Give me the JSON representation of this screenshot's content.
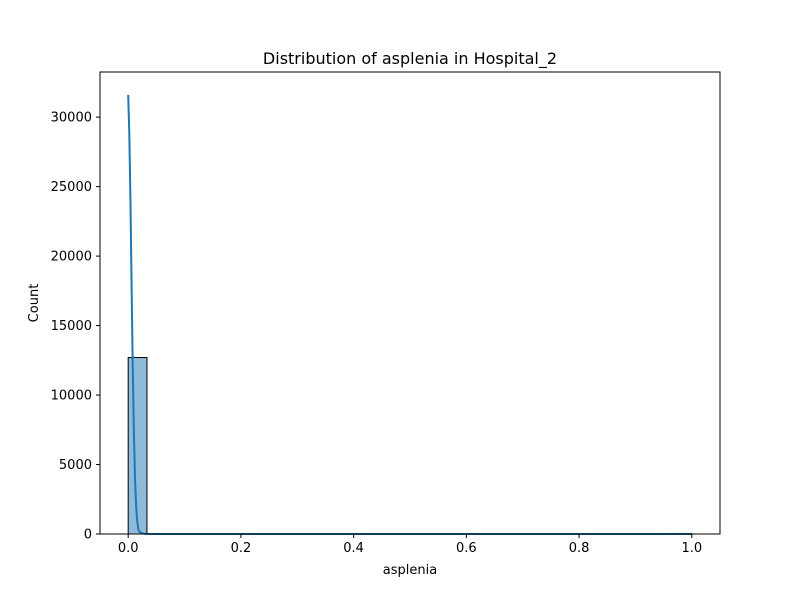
{
  "chart_data": {
    "type": "bar",
    "title": "Distribution of asplenia in Hospital_2",
    "xlabel": "asplenia",
    "ylabel": "Count",
    "xlim": [
      -0.05,
      1.05
    ],
    "ylim": [
      0,
      33250
    ],
    "x_ticks": [
      0.0,
      0.2,
      0.4,
      0.6,
      0.8,
      1.0
    ],
    "x_tick_labels": [
      "0.0",
      "0.2",
      "0.4",
      "0.6",
      "0.8",
      "1.0"
    ],
    "y_ticks": [
      0,
      5000,
      10000,
      15000,
      20000,
      25000,
      30000
    ],
    "y_tick_labels": [
      "0",
      "5000",
      "10000",
      "15000",
      "20000",
      "25000",
      "30000"
    ],
    "bin_width": 0.0333,
    "bins": [
      {
        "x0": 0.0,
        "x1": 0.0333,
        "count": 12700
      },
      {
        "x0": 0.9667,
        "x1": 1.0,
        "count": 10
      }
    ],
    "kde_line": {
      "x": [
        0.0,
        0.002,
        0.004,
        0.006,
        0.008,
        0.01,
        0.012,
        0.014,
        0.016,
        0.018,
        0.02,
        0.025,
        0.03,
        0.05,
        0.1,
        0.2,
        0.3,
        0.4,
        0.5,
        0.6,
        0.7,
        0.8,
        0.9,
        0.95,
        1.0
      ],
      "y": [
        31600,
        28800,
        24000,
        18000,
        12300,
        7600,
        4200,
        2100,
        900,
        350,
        150,
        40,
        10,
        2,
        0,
        0,
        0,
        0,
        0,
        0,
        0,
        0,
        0,
        2,
        10
      ]
    },
    "grid": false,
    "colors": {
      "bar_fill": "#1f77b4",
      "bar_fill_opacity": 0.5,
      "bar_edge": "#000000",
      "line": "#1f77b4"
    }
  }
}
